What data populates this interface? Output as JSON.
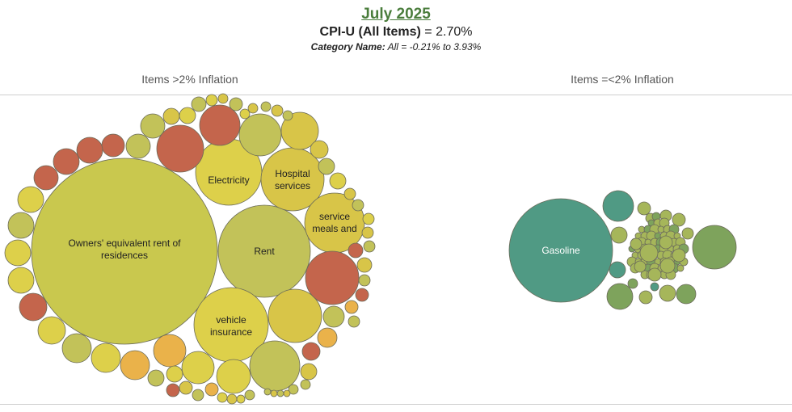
{
  "header": {
    "title": "July 2025",
    "subtitle_bold": "CPI-U (All Items)",
    "subtitle_value": " = 2.70%",
    "range_bold": "Category Name:",
    "range_value": " All = -0.21% to 3.93%"
  },
  "groups": {
    "left_label": "Items >2% Inflation",
    "right_label": "Items =<2% Inflation"
  },
  "colors": {
    "olive": "#c9c84e",
    "yellow": "#ddd04a",
    "mustard": "#d8c548",
    "red": "#c4654c",
    "orange": "#eab24a",
    "lime": "#c2c259",
    "green_light": "#a6b65a",
    "green_mid": "#7ea35c",
    "teal": "#509a84"
  },
  "chart_data": {
    "type": "bubble",
    "title": "July 2025",
    "groups": [
      "Items >2% Inflation",
      "Items =<2% Inflation"
    ],
    "labeled_items": [
      {
        "label": "Owners' equivalent rent of residences",
        "group": "Items >2% Inflation"
      },
      {
        "label": "Rent",
        "group": "Items >2% Inflation"
      },
      {
        "label": "Electricity",
        "group": "Items >2% Inflation"
      },
      {
        "label": "Hospital services",
        "group": "Items >2% Inflation"
      },
      {
        "label": "service meals and",
        "group": "Items >2% Inflation"
      },
      {
        "label": "vehicle insurance",
        "group": "Items >2% Inflation"
      },
      {
        "label": "Gasoline",
        "group": "Items =<2% Inflation"
      }
    ],
    "range_min": -0.21,
    "range_max": 3.93,
    "all_items": 2.7
  }
}
